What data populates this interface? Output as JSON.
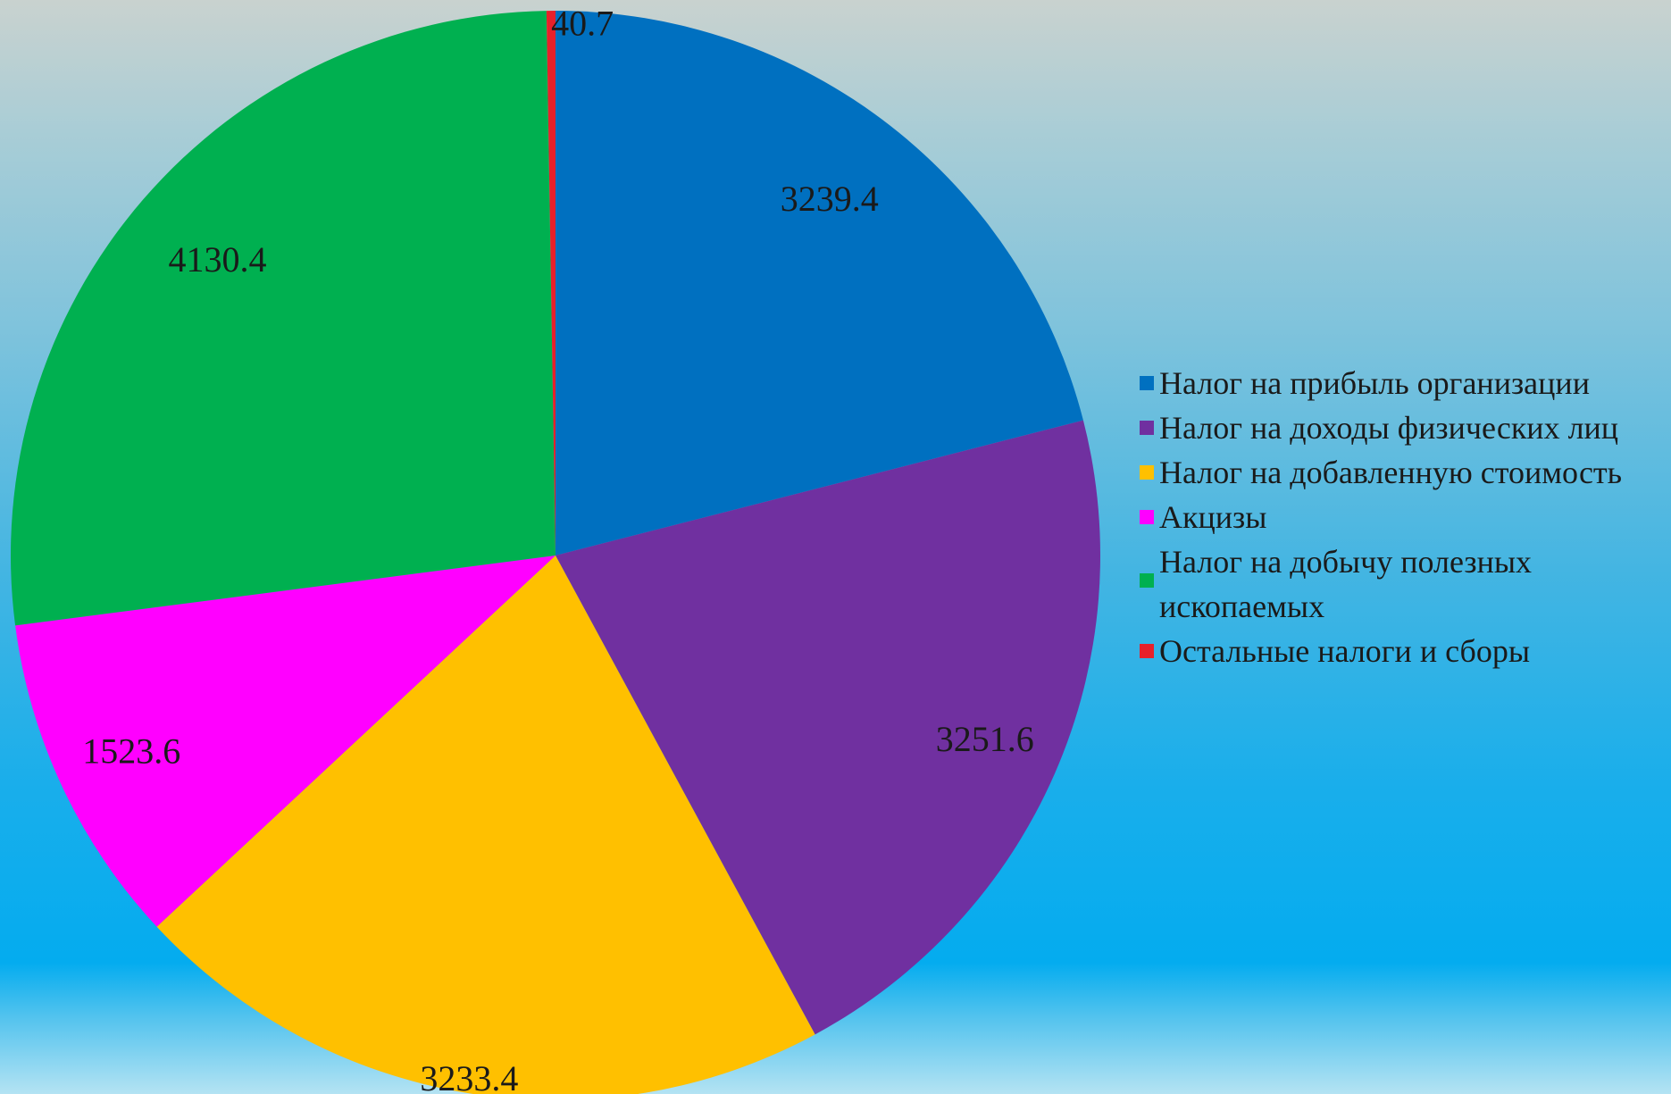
{
  "chart_data": {
    "type": "pie",
    "title": "",
    "legend_position": "right",
    "slices": [
      {
        "label": "Налог на прибыль организации",
        "value": 3239.4,
        "value_text": "3239.4",
        "color": "#0070c0"
      },
      {
        "label": "Налог на доходы физических лиц",
        "value": 3251.6,
        "value_text": "3251.6",
        "color": "#7030a0"
      },
      {
        "label": "Налог на добавленную стоимость",
        "value": 3233.4,
        "value_text": "3233.4",
        "color": "#ffc000"
      },
      {
        "label": "Акцизы",
        "value": 1523.6,
        "value_text": "1523.6",
        "color": "#ff00ff"
      },
      {
        "label": "Налог на добычу полезных ископаемых",
        "value": 4130.4,
        "value_text": "4130.4",
        "color": "#00b050"
      },
      {
        "label": "Остальные налоги и сборы",
        "value": 40.7,
        "value_text": "40.7",
        "color": "#e8202a"
      }
    ]
  }
}
